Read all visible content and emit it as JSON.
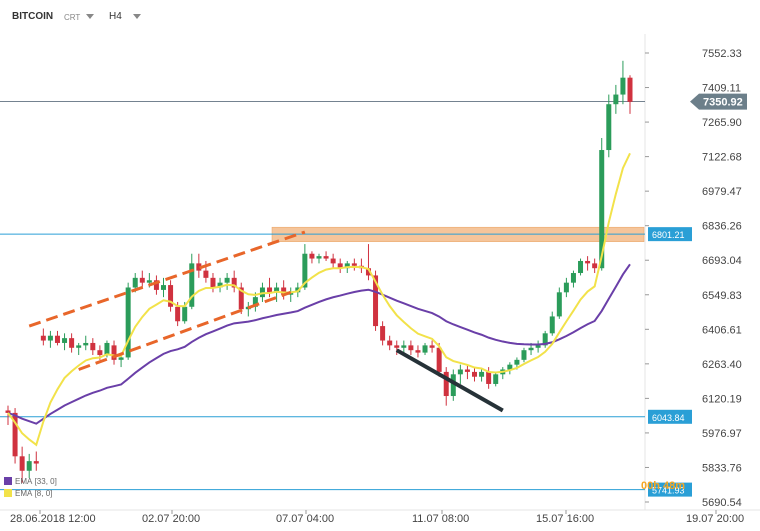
{
  "header": {
    "symbol": "BITCOIN",
    "chart_type": "CRT",
    "timeframe": "H4"
  },
  "indicators": [
    {
      "label": "EMA",
      "params": "[33, 0]",
      "color": "#6a3fa8"
    },
    {
      "label": "EMA",
      "params": "[8, 0]",
      "color": "#f2e24a"
    }
  ],
  "countdown": "00h 48m",
  "colors": {
    "bull": "#2b9c5a",
    "bear": "#d0323f",
    "ema_fast": "#f2e24a",
    "ema_slow": "#6a3fa8",
    "trend": "#e8662a",
    "level_line": "#2a9fd6",
    "zone": "#f2b27a",
    "price_tag": "#6c7f8a"
  },
  "chart_data": {
    "type": "candlestick",
    "title": "",
    "xlabel": "",
    "ylabel": "",
    "ylim": [
      5690.54,
      7552.33
    ],
    "grid": false,
    "y_ticks": [
      "7552.33",
      "7409.11",
      "7265.90",
      "7122.68",
      "6979.47",
      "6836.26",
      "6693.04",
      "6549.83",
      "6406.61",
      "6263.40",
      "6120.19",
      "5976.97",
      "5833.76",
      "5690.54"
    ],
    "x_ticks": [
      "28.06.2018  12:00",
      "02.07  20:00",
      "07.07  04:00",
      "11.07  08:00",
      "15.07  16:00",
      "19.07  20:00"
    ],
    "current_price": "7350.92",
    "levels": [
      "6801.21",
      "6043.84",
      "5741.93"
    ],
    "candles": [
      [
        6070,
        6090,
        6010,
        6060
      ],
      [
        6060,
        6080,
        5850,
        5880
      ],
      [
        5880,
        5920,
        5770,
        5820
      ],
      [
        5820,
        5890,
        5790,
        5860
      ],
      [
        5860,
        5900,
        5820,
        5850
      ],
      [
        6380,
        6410,
        6340,
        6360
      ],
      [
        6360,
        6400,
        6330,
        6380
      ],
      [
        6380,
        6400,
        6340,
        6350
      ],
      [
        6350,
        6390,
        6320,
        6370
      ],
      [
        6370,
        6390,
        6310,
        6330
      ],
      [
        6330,
        6350,
        6300,
        6340
      ],
      [
        6340,
        6380,
        6320,
        6350
      ],
      [
        6350,
        6370,
        6300,
        6320
      ],
      [
        6320,
        6340,
        6280,
        6300
      ],
      [
        6300,
        6360,
        6290,
        6350
      ],
      [
        6340,
        6360,
        6260,
        6280
      ],
      [
        6280,
        6300,
        6250,
        6290
      ],
      [
        6290,
        6600,
        6280,
        6580
      ],
      [
        6580,
        6640,
        6560,
        6620
      ],
      [
        6620,
        6650,
        6580,
        6600
      ],
      [
        6600,
        6640,
        6580,
        6610
      ],
      [
        6610,
        6630,
        6550,
        6570
      ],
      [
        6570,
        6620,
        6540,
        6590
      ],
      [
        6590,
        6610,
        6480,
        6500
      ],
      [
        6500,
        6520,
        6420,
        6440
      ],
      [
        6440,
        6520,
        6430,
        6500
      ],
      [
        6500,
        6720,
        6490,
        6680
      ],
      [
        6680,
        6720,
        6620,
        6650
      ],
      [
        6650,
        6690,
        6600,
        6620
      ],
      [
        6620,
        6640,
        6560,
        6580
      ],
      [
        6580,
        6620,
        6560,
        6600
      ],
      [
        6600,
        6640,
        6570,
        6620
      ],
      [
        6620,
        6650,
        6560,
        6580
      ],
      [
        6580,
        6600,
        6470,
        6490
      ],
      [
        6490,
        6520,
        6460,
        6500
      ],
      [
        6500,
        6560,
        6480,
        6540
      ],
      [
        6540,
        6600,
        6520,
        6580
      ],
      [
        6580,
        6620,
        6540,
        6560
      ],
      [
        6560,
        6600,
        6520,
        6580
      ],
      [
        6580,
        6610,
        6530,
        6550
      ],
      [
        6550,
        6580,
        6520,
        6560
      ],
      [
        6560,
        6600,
        6540,
        6580
      ],
      [
        6580,
        6760,
        6570,
        6720
      ],
      [
        6720,
        6730,
        6680,
        6700
      ],
      [
        6700,
        6720,
        6680,
        6710
      ],
      [
        6710,
        6730,
        6690,
        6700
      ],
      [
        6700,
        6720,
        6660,
        6680
      ],
      [
        6680,
        6700,
        6640,
        6660
      ],
      [
        6660,
        6690,
        6640,
        6680
      ],
      [
        6680,
        6700,
        6650,
        6670
      ],
      [
        6670,
        6700,
        6640,
        6660
      ],
      [
        6660,
        6760,
        6610,
        6630
      ],
      [
        6630,
        6650,
        6400,
        6420
      ],
      [
        6420,
        6440,
        6340,
        6360
      ],
      [
        6360,
        6380,
        6320,
        6340
      ],
      [
        6340,
        6360,
        6300,
        6330
      ],
      [
        6330,
        6360,
        6310,
        6340
      ],
      [
        6340,
        6360,
        6300,
        6320
      ],
      [
        6320,
        6340,
        6290,
        6310
      ],
      [
        6310,
        6350,
        6300,
        6340
      ],
      [
        6340,
        6360,
        6310,
        6330
      ],
      [
        6330,
        6350,
        6210,
        6230
      ],
      [
        6230,
        6250,
        6090,
        6130
      ],
      [
        6130,
        6240,
        6110,
        6220
      ],
      [
        6220,
        6260,
        6180,
        6240
      ],
      [
        6240,
        6260,
        6200,
        6230
      ],
      [
        6230,
        6250,
        6190,
        6210
      ],
      [
        6210,
        6240,
        6190,
        6230
      ],
      [
        6230,
        6250,
        6160,
        6180
      ],
      [
        6180,
        6230,
        6170,
        6220
      ],
      [
        6220,
        6250,
        6200,
        6240
      ],
      [
        6240,
        6270,
        6220,
        6260
      ],
      [
        6260,
        6290,
        6240,
        6280
      ],
      [
        6280,
        6330,
        6270,
        6320
      ],
      [
        6320,
        6350,
        6300,
        6330
      ],
      [
        6330,
        6360,
        6310,
        6340
      ],
      [
        6340,
        6400,
        6330,
        6390
      ],
      [
        6390,
        6480,
        6380,
        6460
      ],
      [
        6460,
        6580,
        6450,
        6560
      ],
      [
        6560,
        6620,
        6540,
        6600
      ],
      [
        6600,
        6650,
        6580,
        6640
      ],
      [
        6640,
        6700,
        6630,
        6690
      ],
      [
        6690,
        6710,
        6650,
        6680
      ],
      [
        6680,
        6700,
        6640,
        6660
      ],
      [
        6660,
        7200,
        6650,
        7150
      ],
      [
        7150,
        7380,
        7120,
        7340
      ],
      [
        7340,
        7420,
        7300,
        7380
      ],
      [
        7380,
        7520,
        7340,
        7450
      ],
      [
        7450,
        7460,
        7300,
        7350
      ]
    ]
  }
}
